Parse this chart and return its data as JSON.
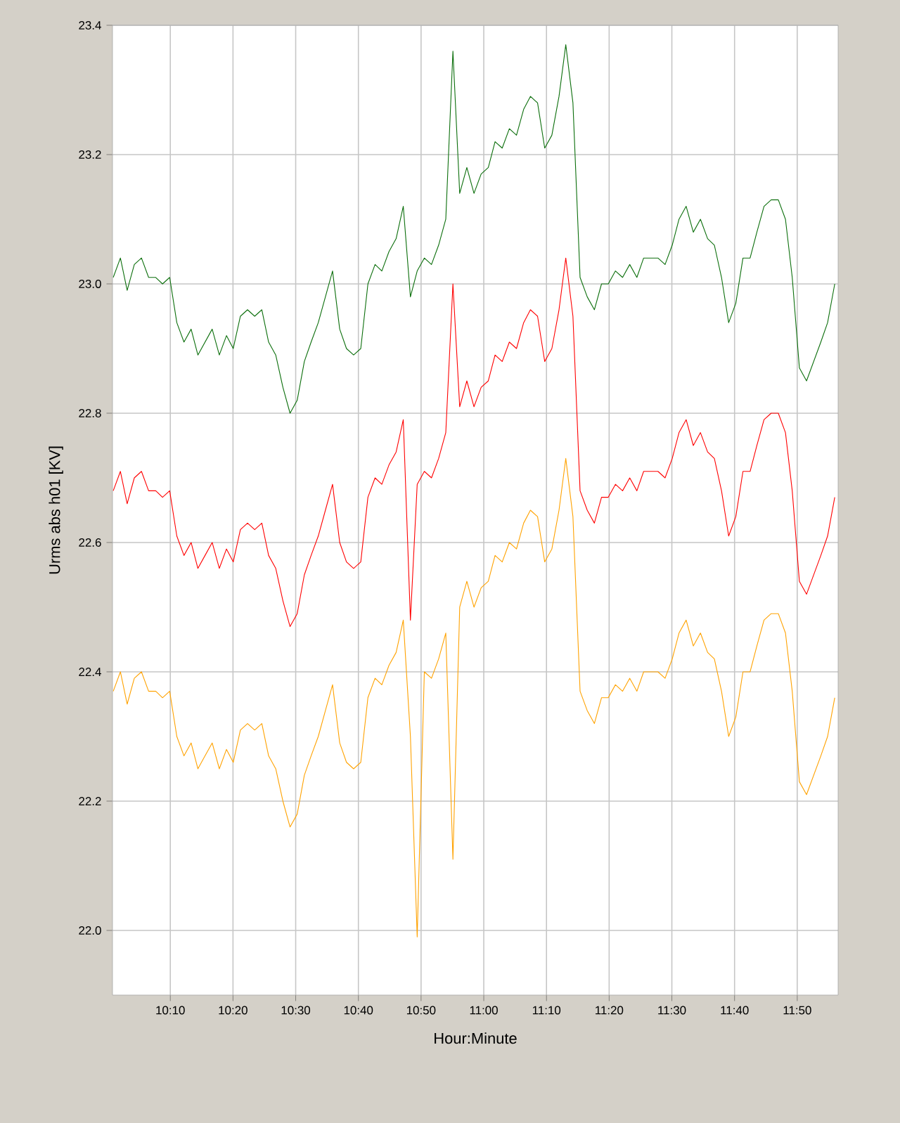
{
  "chart_data": {
    "type": "line",
    "xlabel": "Hour:Minute",
    "ylabel": "Urms abs h01 [KV]",
    "x": [
      10.015,
      10.034,
      10.052,
      10.071,
      10.09,
      10.109,
      10.128,
      10.146,
      10.165,
      10.184,
      10.203,
      10.222,
      10.24,
      10.259,
      10.278,
      10.297,
      10.316,
      10.334,
      10.353,
      10.372,
      10.391,
      10.41,
      10.428,
      10.447,
      10.466,
      10.485,
      10.504,
      10.523,
      10.541,
      10.56,
      10.579,
      10.598,
      10.617,
      10.635,
      10.654,
      10.673,
      10.692,
      10.711,
      10.729,
      10.748,
      10.767,
      10.786,
      10.805,
      10.823,
      10.842,
      10.861,
      10.88,
      10.899,
      10.918,
      10.936,
      10.955,
      10.974,
      10.993,
      11.012,
      11.03,
      11.049,
      11.068,
      11.087,
      11.106,
      11.124,
      11.143,
      11.162,
      11.181,
      11.2,
      11.218,
      11.237,
      11.256,
      11.275,
      11.294,
      11.313,
      11.331,
      11.35,
      11.369,
      11.388,
      11.407,
      11.425,
      11.444,
      11.463,
      11.482,
      11.501,
      11.519,
      11.538,
      11.557,
      11.576,
      11.595,
      11.613,
      11.632,
      11.651,
      11.67,
      11.689,
      11.708,
      11.726,
      11.745,
      11.764,
      11.783,
      11.802,
      11.82,
      11.839,
      11.858,
      11.877,
      11.896,
      11.914,
      11.933
    ],
    "series": [
      {
        "color": "#0b6e0b",
        "values": [
          23.01,
          23.04,
          22.99,
          23.03,
          23.04,
          23.01,
          23.01,
          23.0,
          23.01,
          22.94,
          22.91,
          22.93,
          22.89,
          22.91,
          22.93,
          22.89,
          22.92,
          22.9,
          22.95,
          22.96,
          22.95,
          22.96,
          22.91,
          22.89,
          22.84,
          22.8,
          22.82,
          22.88,
          22.91,
          22.94,
          22.98,
          23.02,
          22.93,
          22.9,
          22.89,
          22.9,
          23.0,
          23.03,
          23.02,
          23.05,
          23.07,
          23.12,
          22.98,
          23.02,
          23.04,
          23.03,
          23.06,
          23.1,
          23.36,
          23.14,
          23.18,
          23.14,
          23.17,
          23.18,
          23.22,
          23.21,
          23.24,
          23.23,
          23.27,
          23.29,
          23.28,
          23.21,
          23.23,
          23.29,
          23.37,
          23.28,
          23.01,
          22.98,
          22.96,
          23.0,
          23.0,
          23.02,
          23.01,
          23.03,
          23.01,
          23.04,
          23.04,
          23.04,
          23.03,
          23.06,
          23.1,
          23.12,
          23.08,
          23.1,
          23.07,
          23.06,
          23.01,
          22.94,
          22.97,
          23.04,
          23.04,
          23.08,
          23.12,
          23.13,
          23.13,
          23.1,
          23.01,
          22.87,
          22.85,
          22.88,
          22.91,
          22.94,
          23.0
        ]
      },
      {
        "color": "#ff0000",
        "values": [
          22.68,
          22.71,
          22.66,
          22.7,
          22.71,
          22.68,
          22.68,
          22.67,
          22.68,
          22.61,
          22.58,
          22.6,
          22.56,
          22.58,
          22.6,
          22.56,
          22.59,
          22.57,
          22.62,
          22.63,
          22.62,
          22.63,
          22.58,
          22.56,
          22.51,
          22.47,
          22.49,
          22.55,
          22.58,
          22.61,
          22.65,
          22.69,
          22.6,
          22.57,
          22.56,
          22.57,
          22.67,
          22.7,
          22.69,
          22.72,
          22.74,
          22.79,
          22.48,
          22.69,
          22.71,
          22.7,
          22.73,
          22.77,
          23.0,
          22.81,
          22.85,
          22.81,
          22.84,
          22.85,
          22.89,
          22.88,
          22.91,
          22.9,
          22.94,
          22.96,
          22.95,
          22.88,
          22.9,
          22.96,
          23.04,
          22.95,
          22.68,
          22.65,
          22.63,
          22.67,
          22.67,
          22.69,
          22.68,
          22.7,
          22.68,
          22.71,
          22.71,
          22.71,
          22.7,
          22.73,
          22.77,
          22.79,
          22.75,
          22.77,
          22.74,
          22.73,
          22.68,
          22.61,
          22.64,
          22.71,
          22.71,
          22.75,
          22.79,
          22.8,
          22.8,
          22.77,
          22.68,
          22.54,
          22.52,
          22.55,
          22.58,
          22.61,
          22.67
        ]
      },
      {
        "color": "#ffa200",
        "values": [
          22.37,
          22.4,
          22.35,
          22.39,
          22.4,
          22.37,
          22.37,
          22.36,
          22.37,
          22.3,
          22.27,
          22.29,
          22.25,
          22.27,
          22.29,
          22.25,
          22.28,
          22.26,
          22.31,
          22.32,
          22.31,
          22.32,
          22.27,
          22.25,
          22.2,
          22.16,
          22.18,
          22.24,
          22.27,
          22.3,
          22.34,
          22.38,
          22.29,
          22.26,
          22.25,
          22.26,
          22.36,
          22.39,
          22.38,
          22.41,
          22.43,
          22.48,
          22.3,
          21.99,
          22.4,
          22.39,
          22.42,
          22.46,
          22.11,
          22.5,
          22.54,
          22.5,
          22.53,
          22.54,
          22.58,
          22.57,
          22.6,
          22.59,
          22.63,
          22.65,
          22.64,
          22.57,
          22.59,
          22.65,
          22.73,
          22.64,
          22.37,
          22.34,
          22.32,
          22.36,
          22.36,
          22.38,
          22.37,
          22.39,
          22.37,
          22.4,
          22.4,
          22.4,
          22.39,
          22.42,
          22.46,
          22.48,
          22.44,
          22.46,
          22.43,
          22.42,
          22.37,
          22.3,
          22.33,
          22.4,
          22.4,
          22.44,
          22.48,
          22.49,
          22.49,
          22.46,
          22.37,
          22.23,
          22.21,
          22.24,
          22.27,
          22.3,
          22.36
        ]
      }
    ],
    "xlim": [
      10.013,
      11.942
    ],
    "ylim": [
      21.9,
      23.4
    ],
    "xticks": [
      {
        "value": 10.1667,
        "label": "10:10"
      },
      {
        "value": 10.3333,
        "label": "10:20"
      },
      {
        "value": 10.5,
        "label": "10:30"
      },
      {
        "value": 10.6667,
        "label": "10:40"
      },
      {
        "value": 10.8333,
        "label": "10:50"
      },
      {
        "value": 11,
        "label": "11:00"
      },
      {
        "value": 11.1667,
        "label": "11:10"
      },
      {
        "value": 11.3333,
        "label": "11:20"
      },
      {
        "value": 11.5,
        "label": "11:30"
      },
      {
        "value": 11.6667,
        "label": "11:40"
      },
      {
        "value": 11.8333,
        "label": "11:50"
      }
    ],
    "yticks": [
      {
        "value": 22.0,
        "label": "22.0"
      },
      {
        "value": 22.2,
        "label": "22.2"
      },
      {
        "value": 22.4,
        "label": "22.4"
      },
      {
        "value": 22.6,
        "label": "22.6"
      },
      {
        "value": 22.8,
        "label": "22.8"
      },
      {
        "value": 23.0,
        "label": "23.0"
      },
      {
        "value": 23.2,
        "label": "23.2"
      },
      {
        "value": 23.4,
        "label": "23.4"
      }
    ],
    "grid": true,
    "marker": "none"
  }
}
